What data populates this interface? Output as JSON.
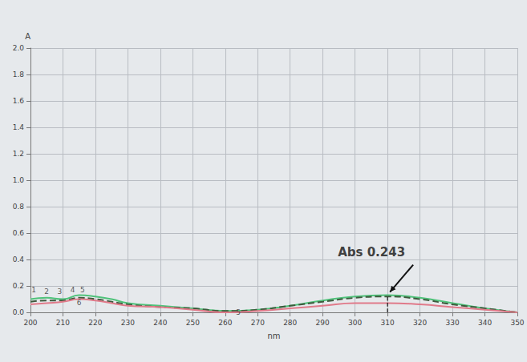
{
  "chart_data": {
    "type": "line",
    "y_label": "A",
    "x_label": "nm",
    "x": [
      200,
      205,
      210,
      215,
      220,
      225,
      230,
      240,
      250,
      260,
      270,
      280,
      290,
      300,
      310,
      320,
      330,
      340,
      350
    ],
    "series": [
      {
        "color": "#4fc27a",
        "line_style": "solid",
        "values": [
          0.1,
          0.11,
          0.1,
          0.13,
          0.12,
          0.1,
          0.07,
          0.05,
          0.03,
          0.01,
          0.02,
          0.05,
          0.09,
          0.12,
          0.13,
          0.11,
          0.07,
          0.03,
          0.0
        ]
      },
      {
        "color": "#3d5a3d",
        "line_style": "dashed",
        "values": [
          0.08,
          0.09,
          0.09,
          0.11,
          0.1,
          0.08,
          0.06,
          0.04,
          0.03,
          0.01,
          0.02,
          0.05,
          0.08,
          0.11,
          0.12,
          0.1,
          0.06,
          0.03,
          0.0
        ]
      },
      {
        "color": "#e07a8a",
        "line_style": "solid",
        "values": [
          0.06,
          0.07,
          0.08,
          0.1,
          0.09,
          0.07,
          0.05,
          0.04,
          0.02,
          0.0,
          0.01,
          0.03,
          0.05,
          0.07,
          0.07,
          0.06,
          0.04,
          0.02,
          0.0
        ]
      }
    ],
    "xlim": [
      200,
      350
    ],
    "xticks": [
      200,
      210,
      220,
      230,
      240,
      250,
      260,
      270,
      280,
      290,
      300,
      310,
      320,
      330,
      340,
      350
    ],
    "ylim": [
      0,
      2.0
    ],
    "yticks": [
      {
        "value": 0,
        "label": "0.0"
      },
      {
        "value": 0.2,
        "label": "0.2"
      },
      {
        "value": 0.4,
        "label": "0.4"
      },
      {
        "value": 0.6,
        "label": "0.6"
      },
      {
        "value": 0.8,
        "label": "0.8"
      },
      {
        "value": 1.0,
        "label": "1.0"
      },
      {
        "value": 1.2,
        "label": "1.2"
      },
      {
        "value": 1.4,
        "label": "1.4"
      },
      {
        "value": 1.6,
        "label": "1.6"
      },
      {
        "value": 1.8,
        "label": "1.8"
      },
      {
        "value": 2.0,
        "label": "2.0"
      }
    ],
    "grid": true,
    "peak_labels": [
      {
        "text": "1",
        "x": 201,
        "y": 0.17
      },
      {
        "text": "2",
        "x": 205,
        "y": 0.16
      },
      {
        "text": "3",
        "x": 209,
        "y": 0.16
      },
      {
        "text": "4",
        "x": 213,
        "y": 0.17
      },
      {
        "text": "5",
        "x": 216,
        "y": 0.17
      },
      {
        "text": "6",
        "x": 215,
        "y": 0.07
      },
      {
        "text": "5",
        "x": 264,
        "y": 0.0
      }
    ],
    "annotation": {
      "text": "Abs 0.243",
      "x": 310,
      "y": 0.13
    }
  }
}
